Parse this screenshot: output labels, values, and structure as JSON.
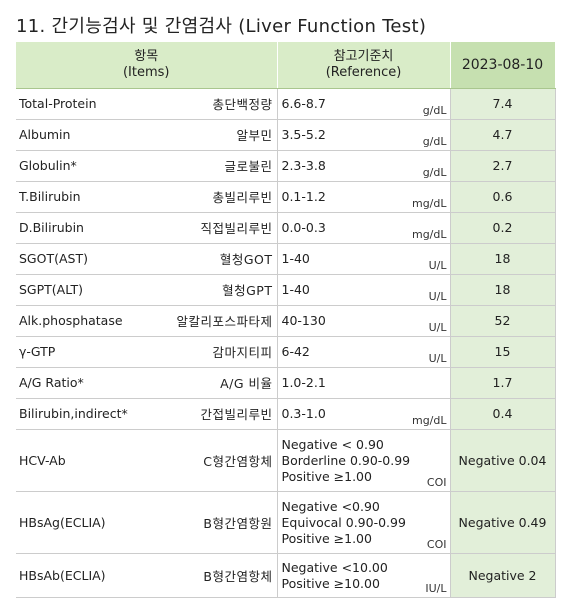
{
  "title": "11. 간기능검사 및 간염검사 (Liver Function Test)",
  "header": {
    "item_ko": "항목",
    "item_en": "(Items)",
    "ref_ko": "참고기준치",
    "ref_en": "(Reference)",
    "date": "2023-08-10"
  },
  "rows": [
    {
      "en": "Total-Protein",
      "ko": "총단백정량",
      "ref": [
        "6.6-8.7"
      ],
      "unit": "g/dL",
      "value": "7.4"
    },
    {
      "en": "Albumin",
      "ko": "알부민",
      "ref": [
        "3.5-5.2"
      ],
      "unit": "g/dL",
      "value": "4.7"
    },
    {
      "en": "Globulin*",
      "ko": "글로불린",
      "ref": [
        "2.3-3.8"
      ],
      "unit": "g/dL",
      "value": "2.7"
    },
    {
      "en": "T.Bilirubin",
      "ko": "총빌리루빈",
      "ref": [
        "0.1-1.2"
      ],
      "unit": "mg/dL",
      "value": "0.6"
    },
    {
      "en": "D.Bilirubin",
      "ko": "직접빌리루빈",
      "ref": [
        "0.0-0.3"
      ],
      "unit": "mg/dL",
      "value": "0.2"
    },
    {
      "en": "SGOT(AST)",
      "ko": "혈청GOT",
      "ref": [
        "1-40"
      ],
      "unit": "U/L",
      "value": "18"
    },
    {
      "en": "SGPT(ALT)",
      "ko": "혈청GPT",
      "ref": [
        "1-40"
      ],
      "unit": "U/L",
      "value": "18"
    },
    {
      "en": "Alk.phosphatase",
      "ko": "알칼리포스파타제",
      "ref": [
        "40-130"
      ],
      "unit": "U/L",
      "value": "52"
    },
    {
      "en": "γ-GTP",
      "ko": "감마지티피",
      "ref": [
        "6-42"
      ],
      "unit": "U/L",
      "value": "15"
    },
    {
      "en": "A/G Ratio*",
      "ko": "A/G 비율",
      "ref": [
        "1.0-2.1"
      ],
      "unit": "",
      "value": "1.7"
    },
    {
      "en": "Bilirubin,indirect*",
      "ko": "간접빌리루빈",
      "ref": [
        "0.3-1.0"
      ],
      "unit": "mg/dL",
      "value": "0.4"
    },
    {
      "en": "HCV-Ab",
      "ko": "C형간염항체",
      "ref": [
        "Negative < 0.90",
        "Borderline 0.90-0.99",
        "Positive ≥1.00"
      ],
      "unit": "COI",
      "value": "Negative 0.04"
    },
    {
      "en": "HBsAg(ECLIA)",
      "ko": "B형간염항원",
      "ref": [
        "Negative  <0.90",
        "Equivocal 0.90-0.99",
        "Positive  ≥1.00"
      ],
      "unit": "COI",
      "value": "Negative 0.49"
    },
    {
      "en": "HBsAb(ECLIA)",
      "ko": "B형간염항체",
      "ref": [
        "Negative <10.00",
        "Positive ≥10.00"
      ],
      "unit": "IU/L",
      "value": "Negative 2"
    }
  ]
}
